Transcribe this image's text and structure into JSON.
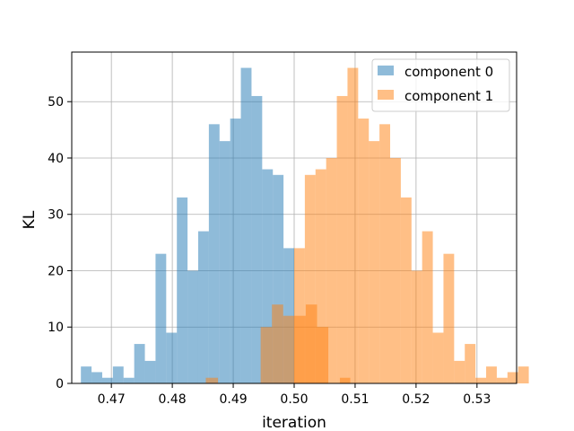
{
  "chart_data": {
    "type": "bar",
    "subtype": "overlapping-histogram",
    "xlabel": "iteration",
    "ylabel": "KL",
    "xlim": [
      0.4635,
      0.5365
    ],
    "ylim": [
      0,
      58.8
    ],
    "x_ticks": [
      0.47,
      0.48,
      0.49,
      0.5,
      0.51,
      0.52,
      0.53
    ],
    "x_tick_labels": [
      "0.47",
      "0.48",
      "0.49",
      "0.50",
      "0.51",
      "0.52",
      "0.53"
    ],
    "y_ticks": [
      0,
      10,
      20,
      30,
      40,
      50
    ],
    "y_tick_labels": [
      "0",
      "10",
      "20",
      "30",
      "40",
      "50"
    ],
    "grid": true,
    "legend_position": "top-right",
    "series": [
      {
        "name": "component 0",
        "color": "#1f77b4",
        "alpha": 0.5,
        "bin_start": 0.465,
        "bin_width": 0.00175,
        "counts": [
          3,
          2,
          1,
          3,
          1,
          7,
          4,
          23,
          9,
          33,
          20,
          27,
          46,
          43,
          47,
          56,
          51,
          38,
          37,
          24
        ]
      },
      {
        "name": "component 1",
        "color": "#ff7f0e",
        "alpha": 0.5,
        "bin_start": 0.5,
        "bin_width": 0.00175,
        "counts": [
          24,
          37,
          38,
          40,
          51,
          56,
          47,
          43,
          46,
          40,
          33,
          20,
          27,
          9,
          23,
          4,
          7,
          1,
          3,
          1,
          2,
          3
        ]
      },
      {
        "name": "",
        "color": "#ff7f0e",
        "alpha": 0.5,
        "bin_start": 0.4945,
        "bin_width": 0.00185,
        "counts": [
          10,
          14,
          12,
          12,
          14,
          10
        ]
      },
      {
        "name": "",
        "color": "#ff7f0e",
        "alpha": 0.5,
        "bins": [
          {
            "x0": 0.4855,
            "x1": 0.4875,
            "count": 1
          },
          {
            "x0": 0.5075,
            "x1": 0.5092,
            "count": 1
          }
        ]
      }
    ]
  }
}
